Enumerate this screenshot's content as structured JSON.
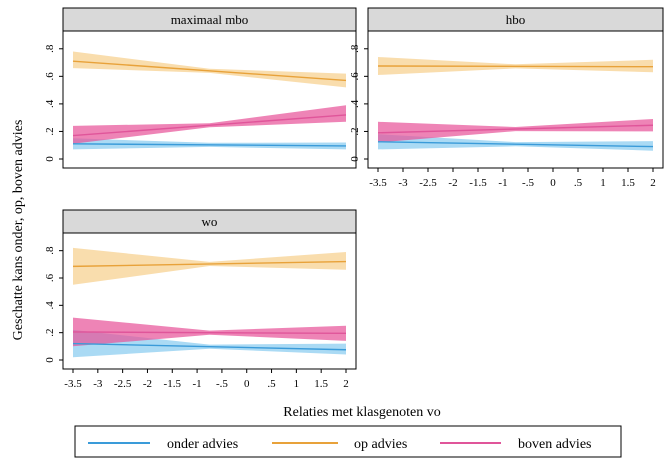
{
  "colors": {
    "onder": "#3a9bd9",
    "onder_band": "#8ecdf0",
    "op": "#e8a23a",
    "op_band": "#f6cf8a",
    "boven": "#e0559a",
    "boven_band": "#e8549a",
    "panel_header_bg": "#d9d9d9"
  },
  "axes": {
    "ylabel": "Geschatte kans onder, op, boven advies",
    "xlabel": "Relaties met klasgenoten vo"
  },
  "legend": {
    "items": [
      "onder advies",
      "op advies",
      "boven advies"
    ]
  },
  "chart_data": {
    "type": "line",
    "ylim": [
      0,
      0.9
    ],
    "xlim": [
      -3.5,
      2
    ],
    "y_ticks": [
      0,
      0.2,
      0.4,
      0.6,
      0.8
    ],
    "y_tick_labels": [
      "0",
      ".2",
      ".4",
      ".6",
      ".8"
    ],
    "x_ticks": [
      -3.5,
      -3,
      -2.5,
      -2,
      -1.5,
      -1,
      -0.5,
      0,
      0.5,
      1,
      1.5,
      2
    ],
    "x_tick_labels": [
      "-3.5",
      "-3",
      "-2.5",
      "-2",
      "-1.5",
      "-1",
      "-.5",
      "0",
      ".5",
      "1",
      "1.5",
      "2"
    ],
    "panels": [
      {
        "title": "maximaal mbo",
        "series": [
          {
            "name": "onder advies",
            "x": [
              -3.5,
              2
            ],
            "y": [
              0.11,
              0.095
            ],
            "lower": [
              [
                0.07,
                0.07
              ],
              [
                0.15,
                0.12
              ]
            ]
          },
          {
            "name": "op advies",
            "x": [
              -3.5,
              2
            ],
            "y": [
              0.71,
              0.57
            ],
            "lower": [
              [
                0.66,
                0.52
              ],
              [
                0.78,
                0.62
              ]
            ]
          },
          {
            "name": "boven advies",
            "x": [
              -3.5,
              2
            ],
            "y": [
              0.17,
              0.32
            ],
            "lower": [
              [
                0.11,
                0.27
              ],
              [
                0.24,
                0.39
              ]
            ]
          }
        ]
      },
      {
        "title": "hbo",
        "series": [
          {
            "name": "onder advies",
            "x": [
              -3.5,
              2
            ],
            "y": [
              0.125,
              0.09
            ],
            "lower": [
              [
                0.07,
                0.06
              ],
              [
                0.18,
                0.13
              ]
            ]
          },
          {
            "name": "op advies",
            "x": [
              -3.5,
              2
            ],
            "y": [
              0.675,
              0.67
            ],
            "lower": [
              [
                0.61,
                0.63
              ],
              [
                0.74,
                0.72
              ]
            ]
          },
          {
            "name": "boven advies",
            "x": [
              -3.5,
              2
            ],
            "y": [
              0.19,
              0.245
            ],
            "lower": [
              [
                0.12,
                0.2
              ],
              [
                0.27,
                0.29
              ]
            ]
          }
        ]
      },
      {
        "title": "wo",
        "series": [
          {
            "name": "onder advies",
            "x": [
              -3.5,
              2
            ],
            "y": [
              0.12,
              0.075
            ],
            "lower": [
              [
                0.02,
                0.04
              ],
              [
                0.22,
                0.12
              ]
            ]
          },
          {
            "name": "op advies",
            "x": [
              -3.5,
              2
            ],
            "y": [
              0.685,
              0.72
            ],
            "lower": [
              [
                0.55,
                0.66
              ],
              [
                0.82,
                0.79
              ]
            ]
          },
          {
            "name": "boven advies",
            "x": [
              -3.5,
              2
            ],
            "y": [
              0.205,
              0.195
            ],
            "lower": [
              [
                0.1,
                0.14
              ],
              [
                0.31,
                0.25
              ]
            ]
          }
        ]
      }
    ]
  }
}
